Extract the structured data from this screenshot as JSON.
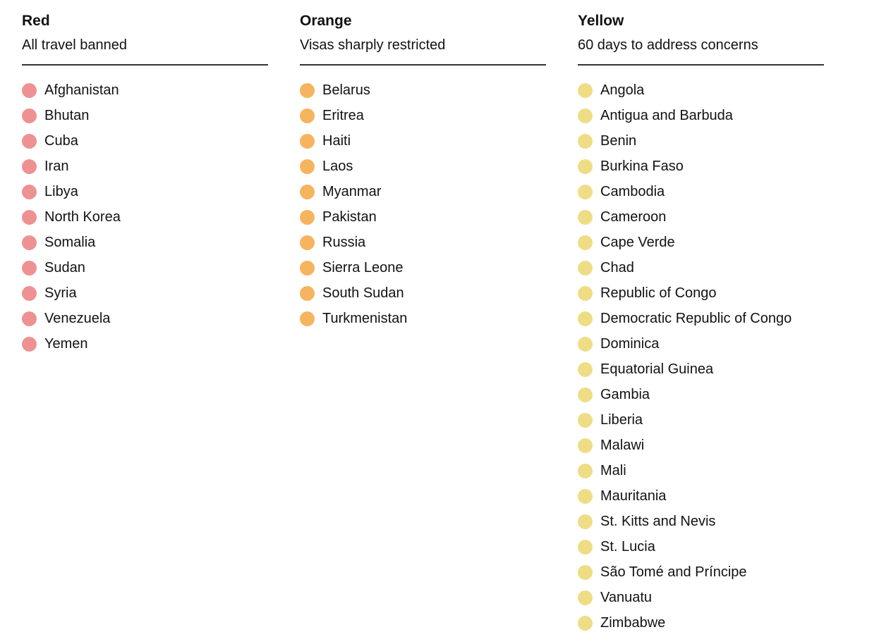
{
  "chart_data": {
    "type": "table",
    "groups": [
      {
        "title": "Red",
        "subtitle": "All travel banned",
        "dot_color": "#ee9192",
        "countries": [
          "Afghanistan",
          "Bhutan",
          "Cuba",
          "Iran",
          "Libya",
          "North Korea",
          "Somalia",
          "Sudan",
          "Syria",
          "Venezuela",
          "Yemen"
        ]
      },
      {
        "title": "Orange",
        "subtitle": "Visas sharply restricted",
        "dot_color": "#f6b45f",
        "countries": [
          "Belarus",
          "Eritrea",
          "Haiti",
          "Laos",
          "Myanmar",
          "Pakistan",
          "Russia",
          "Sierra Leone",
          "South Sudan",
          "Turkmenistan"
        ]
      },
      {
        "title": "Yellow",
        "subtitle": "60 days to address concerns",
        "dot_color": "#eedd85",
        "countries": [
          "Angola",
          "Antigua and Barbuda",
          "Benin",
          "Burkina Faso",
          "Cambodia",
          "Cameroon",
          "Cape Verde",
          "Chad",
          "Republic of Congo",
          "Democratic Republic of Congo",
          "Dominica",
          "Equatorial Guinea",
          "Gambia",
          "Liberia",
          "Malawi",
          "Mali",
          "Mauritania",
          "St. Kitts and Nevis",
          "St. Lucia",
          "São Tomé and Príncipe",
          "Vanuatu",
          "Zimbabwe"
        ]
      }
    ]
  },
  "colors": {
    "text": "#121212",
    "rule": "#333333",
    "background": "#ffffff"
  }
}
